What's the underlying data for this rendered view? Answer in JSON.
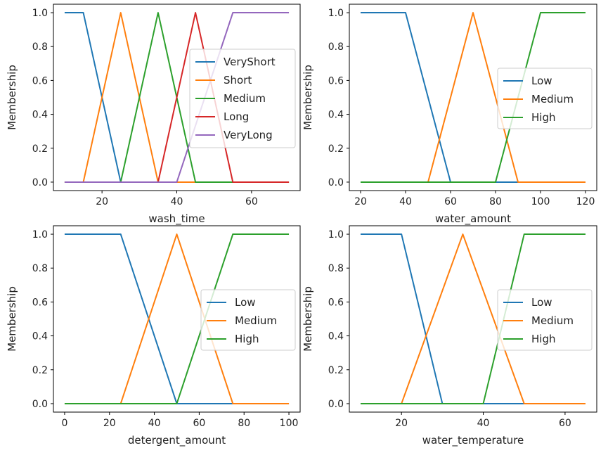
{
  "chart_data": [
    {
      "type": "line",
      "xlabel": "wash_time",
      "ylabel": "Membership",
      "xlim": [
        7,
        73
      ],
      "ylim": [
        -0.05,
        1.05
      ],
      "xticks": [
        20,
        40,
        60
      ],
      "yticks": [
        0.0,
        0.2,
        0.4,
        0.6,
        0.8,
        1.0
      ],
      "legend_placement": "center-right",
      "series": [
        {
          "name": "VeryShort",
          "color": "#1f77b4",
          "points": [
            [
              10,
              1
            ],
            [
              15,
              1
            ],
            [
              25,
              0
            ],
            [
              70,
              0
            ]
          ]
        },
        {
          "name": "Short",
          "color": "#ff7f0e",
          "points": [
            [
              10,
              0
            ],
            [
              15,
              0
            ],
            [
              25,
              1
            ],
            [
              35,
              0
            ],
            [
              70,
              0
            ]
          ]
        },
        {
          "name": "Medium",
          "color": "#2ca02c",
          "points": [
            [
              10,
              0
            ],
            [
              25,
              0
            ],
            [
              35,
              1
            ],
            [
              45,
              0
            ],
            [
              70,
              0
            ]
          ]
        },
        {
          "name": "Long",
          "color": "#d62728",
          "points": [
            [
              10,
              0
            ],
            [
              35,
              0
            ],
            [
              45,
              1
            ],
            [
              55,
              0
            ],
            [
              70,
              0
            ]
          ]
        },
        {
          "name": "VeryLong",
          "color": "#9467bd",
          "points": [
            [
              10,
              0
            ],
            [
              40,
              0
            ],
            [
              55,
              1
            ],
            [
              70,
              1
            ]
          ]
        }
      ]
    },
    {
      "type": "line",
      "xlabel": "water_amount",
      "ylabel": "Membership",
      "xlim": [
        15,
        125
      ],
      "ylim": [
        -0.05,
        1.05
      ],
      "xticks": [
        20,
        40,
        60,
        80,
        100,
        120
      ],
      "yticks": [
        0.0,
        0.2,
        0.4,
        0.6,
        0.8,
        1.0
      ],
      "legend_placement": "center-right",
      "series": [
        {
          "name": "Low",
          "color": "#1f77b4",
          "points": [
            [
              20,
              1
            ],
            [
              40,
              1
            ],
            [
              60,
              0
            ],
            [
              120,
              0
            ]
          ]
        },
        {
          "name": "Medium",
          "color": "#ff7f0e",
          "points": [
            [
              20,
              0
            ],
            [
              50,
              0
            ],
            [
              70,
              1
            ],
            [
              90,
              0
            ],
            [
              120,
              0
            ]
          ]
        },
        {
          "name": "High",
          "color": "#2ca02c",
          "points": [
            [
              20,
              0
            ],
            [
              80,
              0
            ],
            [
              100,
              1
            ],
            [
              120,
              1
            ]
          ]
        }
      ]
    },
    {
      "type": "line",
      "xlabel": "detergent_amount",
      "ylabel": "Membership",
      "xlim": [
        -5,
        105
      ],
      "ylim": [
        -0.05,
        1.05
      ],
      "xticks": [
        0,
        20,
        40,
        60,
        80,
        100
      ],
      "yticks": [
        0.0,
        0.2,
        0.4,
        0.6,
        0.8,
        1.0
      ],
      "legend_placement": "center-right",
      "series": [
        {
          "name": "Low",
          "color": "#1f77b4",
          "points": [
            [
              0,
              1
            ],
            [
              25,
              1
            ],
            [
              50,
              0
            ],
            [
              100,
              0
            ]
          ]
        },
        {
          "name": "Medium",
          "color": "#ff7f0e",
          "points": [
            [
              0,
              0
            ],
            [
              25,
              0
            ],
            [
              50,
              1
            ],
            [
              75,
              0
            ],
            [
              100,
              0
            ]
          ]
        },
        {
          "name": "High",
          "color": "#2ca02c",
          "points": [
            [
              0,
              0
            ],
            [
              50,
              0
            ],
            [
              75,
              1
            ],
            [
              100,
              1
            ]
          ]
        }
      ]
    },
    {
      "type": "line",
      "xlabel": "water_temperature",
      "ylabel": "Membership",
      "xlim": [
        7.25,
        67.75
      ],
      "ylim": [
        -0.05,
        1.05
      ],
      "xticks": [
        20,
        40,
        60
      ],
      "yticks": [
        0.0,
        0.2,
        0.4,
        0.6,
        0.8,
        1.0
      ],
      "legend_placement": "center-right",
      "series": [
        {
          "name": "Low",
          "color": "#1f77b4",
          "points": [
            [
              10,
              1
            ],
            [
              20,
              1
            ],
            [
              30,
              0
            ],
            [
              65,
              0
            ]
          ]
        },
        {
          "name": "Medium",
          "color": "#ff7f0e",
          "points": [
            [
              10,
              0
            ],
            [
              20,
              0
            ],
            [
              35,
              1
            ],
            [
              50,
              0
            ],
            [
              65,
              0
            ]
          ]
        },
        {
          "name": "High",
          "color": "#2ca02c",
          "points": [
            [
              10,
              0
            ],
            [
              40,
              0
            ],
            [
              50,
              1
            ],
            [
              65,
              1
            ]
          ]
        }
      ]
    }
  ]
}
